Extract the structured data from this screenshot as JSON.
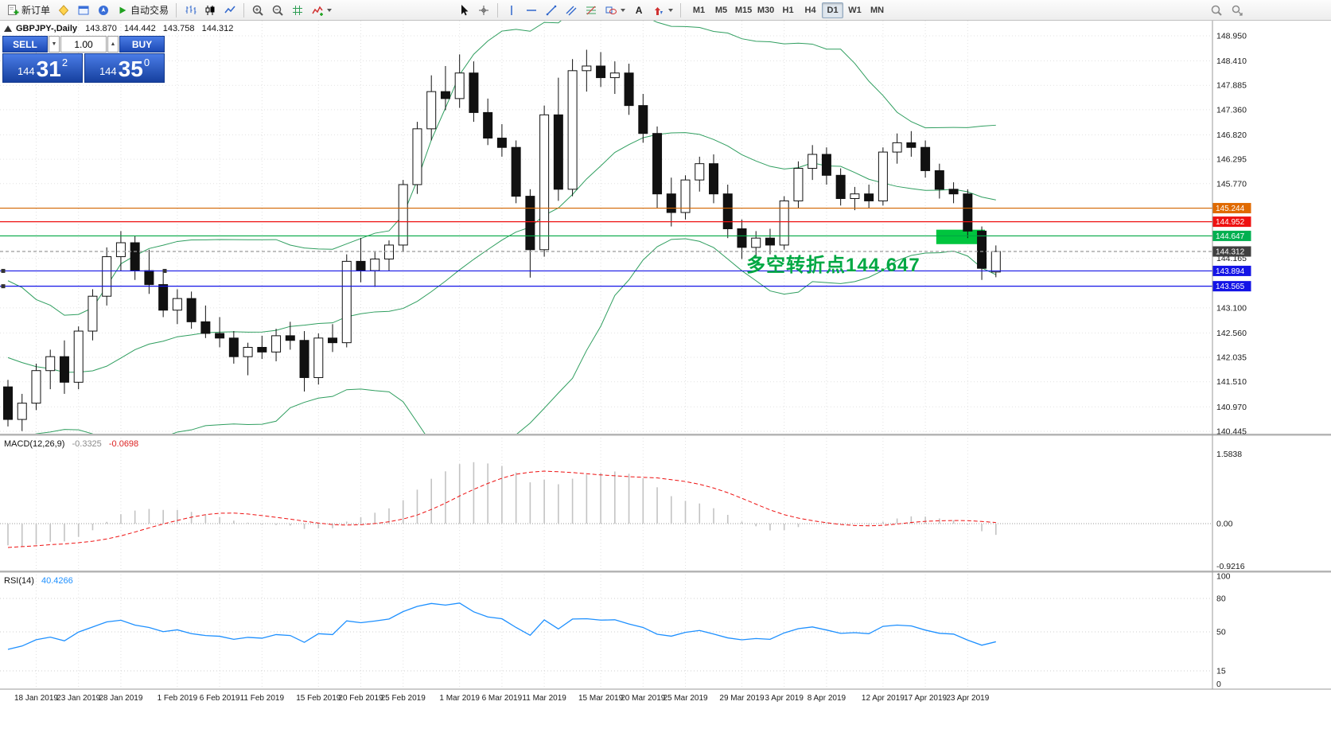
{
  "toolbar": {
    "new_order_label": "新订单",
    "autotrading_label": "自动交易",
    "text_tool_glyph": "A",
    "timeframes": [
      "M1",
      "M5",
      "M15",
      "M30",
      "H1",
      "H4",
      "D1",
      "W1",
      "MN"
    ],
    "active_timeframe": "D1"
  },
  "symbol_header": {
    "title": "GBPJPY-,Daily",
    "open": "143.870",
    "high": "144.442",
    "low": "143.758",
    "close": "144.312"
  },
  "one_click": {
    "sell_label": "SELL",
    "buy_label": "BUY",
    "volume": "1.00",
    "menu_down_glyph": "▼",
    "volume_up_glyph": "▲",
    "sell_prefix": "144",
    "sell_pips": "31",
    "sell_sup": "2",
    "buy_prefix": "144",
    "buy_pips": "35",
    "buy_sup": "0"
  },
  "annotation": {
    "text": "多空转折点144.647"
  },
  "chart_data": {
    "type": "candlestick",
    "title": "GBPJPY-,Daily",
    "timeframe": "D1",
    "price_axis": {
      "top_price": 149.275,
      "bottom_price": 140.376,
      "visible_ticks": [
        "148.950",
        "148.410",
        "147.885",
        "147.360",
        "146.820",
        "146.295",
        "145.770",
        "144.165",
        "143.100",
        "142.560",
        "142.035",
        "141.510",
        "140.970",
        "140.445"
      ]
    },
    "current_price": 144.312,
    "levels": [
      {
        "price": 145.244,
        "label": "145.244",
        "color": "#e06a00",
        "line": "#d26400",
        "style": "solid",
        "handles": []
      },
      {
        "price": 144.952,
        "label": "144.952",
        "color": "#ee1111",
        "line": "#ee1111",
        "style": "solid",
        "handles": []
      },
      {
        "price": 144.647,
        "label": "144.647",
        "color": "#00b050",
        "line": "#00a843",
        "style": "solid",
        "handles": []
      },
      {
        "price": 144.312,
        "label": "144.312",
        "color": "#3f3f3f",
        "line": "#9a9a9a",
        "style": "dash",
        "handles": []
      },
      {
        "price": 143.894,
        "label": "143.894",
        "color": "#1414e6",
        "line": "#1414e6",
        "style": "solid",
        "handles": [
          4,
          207
        ]
      },
      {
        "price": 143.565,
        "label": "143.565",
        "color": "#1414e6",
        "line": "#1414e6",
        "style": "solid",
        "handles": [
          4
        ]
      }
    ],
    "highlight_rect": {
      "from_index": 66,
      "to_index": 69,
      "pad": 4,
      "price_top": 144.78,
      "price_bottom": 144.47,
      "color": "#00c53e"
    },
    "x_labels": [
      {
        "text": "18 Jan 2019",
        "i": 2
      },
      {
        "text": "23 Jan 2019",
        "i": 5
      },
      {
        "text": "28 Jan 2019",
        "i": 8
      },
      {
        "text": "1 Feb 2019",
        "i": 12
      },
      {
        "text": "6 Feb 2019",
        "i": 15
      },
      {
        "text": "11 Feb 2019",
        "i": 18
      },
      {
        "text": "15 Feb 2019",
        "i": 22
      },
      {
        "text": "20 Feb 2019",
        "i": 25
      },
      {
        "text": "25 Feb 2019",
        "i": 28
      },
      {
        "text": "1 Mar 2019",
        "i": 32
      },
      {
        "text": "6 Mar 2019",
        "i": 35
      },
      {
        "text": "11 Mar 2019",
        "i": 38
      },
      {
        "text": "15 Mar 2019",
        "i": 42
      },
      {
        "text": "20 Mar 2019",
        "i": 45
      },
      {
        "text": "25 Mar 2019",
        "i": 48
      },
      {
        "text": "29 Mar 2019",
        "i": 52
      },
      {
        "text": "3 Apr 2019",
        "i": 55
      },
      {
        "text": "8 Apr 2019",
        "i": 58
      },
      {
        "text": "12 Apr 2019",
        "i": 62
      },
      {
        "text": "17 Apr 2019",
        "i": 65
      },
      {
        "text": "23 Apr 2019",
        "i": 68
      }
    ],
    "candles": [
      [
        141.4,
        141.55,
        140.55,
        140.7
      ],
      [
        140.7,
        141.25,
        140.45,
        141.05
      ],
      [
        141.05,
        141.9,
        140.9,
        141.75
      ],
      [
        141.75,
        142.2,
        141.35,
        142.05
      ],
      [
        142.05,
        142.4,
        141.25,
        141.5
      ],
      [
        141.5,
        142.7,
        141.35,
        142.6
      ],
      [
        142.6,
        143.5,
        142.4,
        143.35
      ],
      [
        143.35,
        144.4,
        143.15,
        144.2
      ],
      [
        144.2,
        144.75,
        143.9,
        144.5
      ],
      [
        144.5,
        144.65,
        143.7,
        143.9
      ],
      [
        143.9,
        144.35,
        143.4,
        143.6
      ],
      [
        143.6,
        143.85,
        142.9,
        143.05
      ],
      [
        143.05,
        143.5,
        142.75,
        143.3
      ],
      [
        143.3,
        143.45,
        142.65,
        142.8
      ],
      [
        142.8,
        143.15,
        142.45,
        142.55
      ],
      [
        142.55,
        142.9,
        142.25,
        142.45
      ],
      [
        142.45,
        142.6,
        141.9,
        142.05
      ],
      [
        142.05,
        142.35,
        141.65,
        142.25
      ],
      [
        142.25,
        142.5,
        142.0,
        142.15
      ],
      [
        142.15,
        142.65,
        141.95,
        142.5
      ],
      [
        142.5,
        142.8,
        142.2,
        142.4
      ],
      [
        142.4,
        142.6,
        141.3,
        141.6
      ],
      [
        141.6,
        142.55,
        141.45,
        142.45
      ],
      [
        142.45,
        142.75,
        142.15,
        142.35
      ],
      [
        142.35,
        144.25,
        142.25,
        144.1
      ],
      [
        144.1,
        144.6,
        143.65,
        143.9
      ],
      [
        143.9,
        144.3,
        143.55,
        144.15
      ],
      [
        144.15,
        144.55,
        143.9,
        144.45
      ],
      [
        144.45,
        145.85,
        144.3,
        145.75
      ],
      [
        145.75,
        147.1,
        145.55,
        146.95
      ],
      [
        146.95,
        148.1,
        146.7,
        147.75
      ],
      [
        147.75,
        148.3,
        147.35,
        147.6
      ],
      [
        147.6,
        148.55,
        147.4,
        148.15
      ],
      [
        148.15,
        148.4,
        147.1,
        147.3
      ],
      [
        147.3,
        147.6,
        146.6,
        146.75
      ],
      [
        146.75,
        147.05,
        146.35,
        146.55
      ],
      [
        146.55,
        146.7,
        145.35,
        145.5
      ],
      [
        145.5,
        145.65,
        143.75,
        144.35
      ],
      [
        144.35,
        147.45,
        144.2,
        147.25
      ],
      [
        147.25,
        148.05,
        145.4,
        145.65
      ],
      [
        145.65,
        148.45,
        145.5,
        148.2
      ],
      [
        148.2,
        148.65,
        147.75,
        148.3
      ],
      [
        148.3,
        148.6,
        147.85,
        148.05
      ],
      [
        148.05,
        148.4,
        147.7,
        148.15
      ],
      [
        148.15,
        148.35,
        147.25,
        147.45
      ],
      [
        147.45,
        147.7,
        146.65,
        146.85
      ],
      [
        146.85,
        147.0,
        145.25,
        145.55
      ],
      [
        145.55,
        145.9,
        144.85,
        145.15
      ],
      [
        145.15,
        145.95,
        145.0,
        145.85
      ],
      [
        145.85,
        146.35,
        145.6,
        146.2
      ],
      [
        146.2,
        146.4,
        145.35,
        145.55
      ],
      [
        145.55,
        145.75,
        144.6,
        144.8
      ],
      [
        144.8,
        145.0,
        144.15,
        144.4
      ],
      [
        144.4,
        144.75,
        144.2,
        144.6
      ],
      [
        144.6,
        144.8,
        144.25,
        144.45
      ],
      [
        144.45,
        145.5,
        144.35,
        145.4
      ],
      [
        145.4,
        146.25,
        145.25,
        146.1
      ],
      [
        146.1,
        146.6,
        145.85,
        146.4
      ],
      [
        146.4,
        146.55,
        145.75,
        145.95
      ],
      [
        145.95,
        146.1,
        145.3,
        145.45
      ],
      [
        145.45,
        145.7,
        145.2,
        145.55
      ],
      [
        145.55,
        145.75,
        145.25,
        145.4
      ],
      [
        145.4,
        146.55,
        145.3,
        146.45
      ],
      [
        146.45,
        146.85,
        146.2,
        146.65
      ],
      [
        146.65,
        146.9,
        146.35,
        146.55
      ],
      [
        146.55,
        146.7,
        145.9,
        146.05
      ],
      [
        146.05,
        146.2,
        145.45,
        145.65
      ],
      [
        145.65,
        145.8,
        145.35,
        145.55
      ],
      [
        145.55,
        145.65,
        144.6,
        144.75
      ],
      [
        144.75,
        144.85,
        143.7,
        143.95
      ],
      [
        143.87,
        144.442,
        143.758,
        144.312
      ]
    ],
    "warmup_closes": [
      143.8,
      143.2,
      143.5,
      142.9,
      143.1,
      142.5,
      142.8,
      142.2,
      141.0,
      140.3,
      141.2,
      141.8,
      141.4,
      142.0,
      141.6,
      142.2,
      141.9,
      142.4,
      142.1,
      141.8
    ],
    "indicators": {
      "bollinger": {
        "period": 20,
        "deviations": 2,
        "color": "#2f9e5f"
      },
      "macd": {
        "label": "MACD(12,26,9)",
        "value_main": "-0.3325",
        "value_signal": "-0.0698",
        "fast": 12,
        "slow": 26,
        "signal": 9,
        "axis_max": "1.5838",
        "axis_zero": "0.00",
        "axis_min": "-0.9216",
        "hist_color": "#c3c3c3",
        "signal_color": "#e11"
      },
      "rsi": {
        "label": "RSI(14)",
        "value": "40.4266",
        "period": 14,
        "axis_ticks": [
          100,
          80,
          50,
          15,
          0
        ],
        "level_lines": [
          80,
          50,
          15
        ],
        "color": "#1e90ff"
      }
    }
  }
}
